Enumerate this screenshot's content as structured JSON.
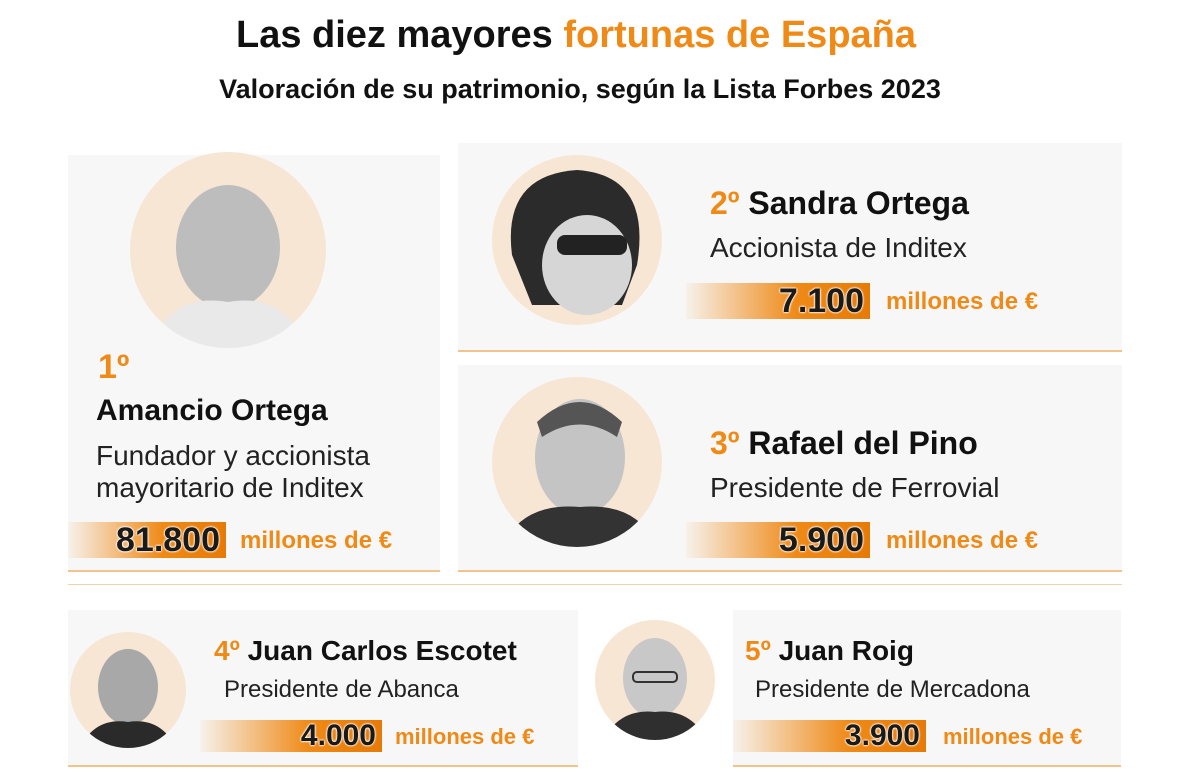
{
  "header": {
    "title_black": "Las diez mayores",
    "title_orange": "fortunas de España",
    "subtitle": "Valoración de su patrimonio, según la Lista Forbes 2023"
  },
  "unit": "millones de €",
  "entries": [
    {
      "rank": "1º",
      "name": "Amancio Ortega",
      "role": "Fundador y accionista mayoritario de Inditex",
      "value": "81.800"
    },
    {
      "rank": "2º",
      "name": "Sandra Ortega",
      "role": "Accionista de Inditex",
      "value": "7.100"
    },
    {
      "rank": "3º",
      "name": "Rafael del Pino",
      "role": "Presidente de Ferrovial",
      "value": "5.900"
    },
    {
      "rank": "4º",
      "name": "Juan Carlos Escotet",
      "role": "Presidente de Abanca",
      "value": "4.000"
    },
    {
      "rank": "5º",
      "name": "Juan Roig",
      "role": "Presidente de Mercadona",
      "value": "3.900"
    }
  ]
}
